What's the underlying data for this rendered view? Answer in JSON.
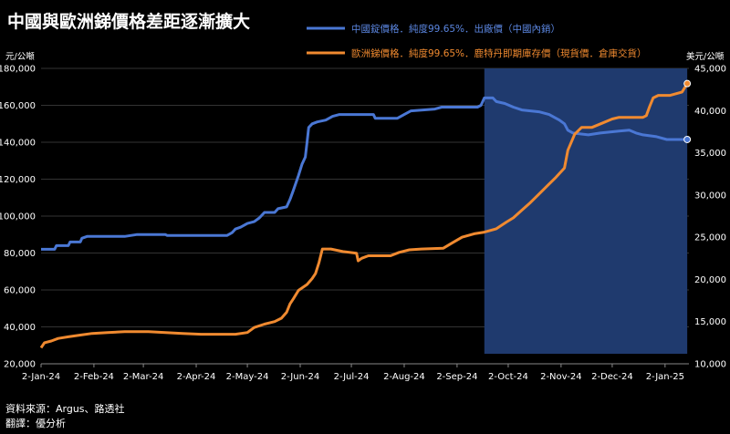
{
  "chart_data": {
    "type": "line",
    "title": "中國與歐洲銻價格差距逐漸擴大",
    "y_left_unit": "元/公噸",
    "y_right_unit": "美元/公噸",
    "y_left_range": [
      20000,
      180000
    ],
    "y_right_range": [
      10000,
      45000
    ],
    "y_left_ticks": [
      "20,000",
      "40,000",
      "60,000",
      "80,000",
      "100,000",
      "120,000",
      "140,000",
      "160,000",
      "180,000"
    ],
    "y_right_ticks": [
      "10,000",
      "15,000",
      "20,000",
      "25,000",
      "30,000",
      "35,000",
      "40,000",
      "45,000"
    ],
    "x_ticks": [
      "2-Jan-24",
      "2-Feb-24",
      "2-Mar-24",
      "2-Apr-24",
      "2-May-24",
      "2-Jun-24",
      "2-Jul-24",
      "2-Aug-24",
      "2-Sep-24",
      "2-Oct-24",
      "2-Nov-24",
      "2-Dec-24",
      "2-Jan-25"
    ],
    "x_range": [
      "2024-01-02",
      "2025-01-16"
    ],
    "highlight_region": {
      "start": "2024-09-18",
      "end": "2025-01-15",
      "color": "#1f3a6e"
    },
    "grid": "horizontal",
    "legend_position": "top-right",
    "series": [
      {
        "name": "中國錠價格．純度99.65%．出廠價（中國內銷）",
        "axis": "left",
        "color": "#4a77d4",
        "points": [
          [
            "2024-01-02",
            82000
          ],
          [
            "2024-01-10",
            82000
          ],
          [
            "2024-01-11",
            84000
          ],
          [
            "2024-01-18",
            84000
          ],
          [
            "2024-01-19",
            86000
          ],
          [
            "2024-01-25",
            86000
          ],
          [
            "2024-01-26",
            88000
          ],
          [
            "2024-01-29",
            89000
          ],
          [
            "2024-02-20",
            89000
          ],
          [
            "2024-02-27",
            90000
          ],
          [
            "2024-03-15",
            90000
          ],
          [
            "2024-03-16",
            89500
          ],
          [
            "2024-04-20",
            89500
          ],
          [
            "2024-04-23",
            91000
          ],
          [
            "2024-04-25",
            93000
          ],
          [
            "2024-04-28",
            94000
          ],
          [
            "2024-05-02",
            96000
          ],
          [
            "2024-05-06",
            97000
          ],
          [
            "2024-05-09",
            99000
          ],
          [
            "2024-05-12",
            102000
          ],
          [
            "2024-05-18",
            102000
          ],
          [
            "2024-05-20",
            104000
          ],
          [
            "2024-05-25",
            105000
          ],
          [
            "2024-05-27",
            109000
          ],
          [
            "2024-05-29",
            114000
          ],
          [
            "2024-06-01",
            122000
          ],
          [
            "2024-06-03",
            128000
          ],
          [
            "2024-06-05",
            132000
          ],
          [
            "2024-06-06",
            140000
          ],
          [
            "2024-06-07",
            148000
          ],
          [
            "2024-06-09",
            150000
          ],
          [
            "2024-06-12",
            151000
          ],
          [
            "2024-06-17",
            152000
          ],
          [
            "2024-06-21",
            154000
          ],
          [
            "2024-06-25",
            155000
          ],
          [
            "2024-07-15",
            155000
          ],
          [
            "2024-07-16",
            153000
          ],
          [
            "2024-07-29",
            153000
          ],
          [
            "2024-08-02",
            155000
          ],
          [
            "2024-08-06",
            157000
          ],
          [
            "2024-08-20",
            158000
          ],
          [
            "2024-08-24",
            159000
          ],
          [
            "2024-09-14",
            159000
          ],
          [
            "2024-09-16",
            160000
          ],
          [
            "2024-09-18",
            164000
          ],
          [
            "2024-09-23",
            164000
          ],
          [
            "2024-09-25",
            162000
          ],
          [
            "2024-09-30",
            161000
          ],
          [
            "2024-10-05",
            159000
          ],
          [
            "2024-10-10",
            157500
          ],
          [
            "2024-10-20",
            156500
          ],
          [
            "2024-10-26",
            155000
          ],
          [
            "2024-11-01",
            152000
          ],
          [
            "2024-11-04",
            150000
          ],
          [
            "2024-11-06",
            146500
          ],
          [
            "2024-11-09",
            145000
          ],
          [
            "2024-11-18",
            144000
          ],
          [
            "2024-11-25",
            145000
          ],
          [
            "2024-12-06",
            146000
          ],
          [
            "2024-12-12",
            146500
          ],
          [
            "2024-12-16",
            145000
          ],
          [
            "2024-12-20",
            144000
          ],
          [
            "2024-12-28",
            143000
          ],
          [
            "2025-01-03",
            141500
          ],
          [
            "2025-01-15",
            141500
          ]
        ]
      },
      {
        "name": "歐洲銻價格．純度99.65%．鹿特丹即期庫存價（現貨價．倉庫交貨）",
        "axis": "right",
        "color": "#f08a30",
        "points": [
          [
            "2024-01-02",
            11900
          ],
          [
            "2024-01-04",
            12500
          ],
          [
            "2024-01-08",
            12700
          ],
          [
            "2024-01-12",
            13000
          ],
          [
            "2024-01-18",
            13200
          ],
          [
            "2024-01-25",
            13400
          ],
          [
            "2024-02-01",
            13600
          ],
          [
            "2024-02-10",
            13700
          ],
          [
            "2024-02-20",
            13800
          ],
          [
            "2024-03-05",
            13800
          ],
          [
            "2024-03-15",
            13700
          ],
          [
            "2024-03-25",
            13600
          ],
          [
            "2024-04-05",
            13500
          ],
          [
            "2024-04-15",
            13500
          ],
          [
            "2024-04-25",
            13500
          ],
          [
            "2024-05-02",
            13700
          ],
          [
            "2024-05-06",
            14300
          ],
          [
            "2024-05-12",
            14700
          ],
          [
            "2024-05-18",
            15000
          ],
          [
            "2024-05-22",
            15400
          ],
          [
            "2024-05-25",
            16100
          ],
          [
            "2024-05-27",
            17100
          ],
          [
            "2024-05-29",
            17700
          ],
          [
            "2024-06-01",
            18700
          ],
          [
            "2024-06-06",
            19400
          ],
          [
            "2024-06-09",
            20100
          ],
          [
            "2024-06-11",
            20700
          ],
          [
            "2024-06-13",
            22000
          ],
          [
            "2024-06-15",
            23600
          ],
          [
            "2024-06-20",
            23600
          ],
          [
            "2024-06-27",
            23300
          ],
          [
            "2024-07-05",
            23100
          ],
          [
            "2024-07-06",
            22200
          ],
          [
            "2024-07-08",
            22500
          ],
          [
            "2024-07-12",
            22800
          ],
          [
            "2024-07-25",
            22800
          ],
          [
            "2024-07-30",
            23200
          ],
          [
            "2024-08-05",
            23500
          ],
          [
            "2024-08-12",
            23600
          ],
          [
            "2024-08-25",
            23700
          ],
          [
            "2024-08-30",
            24300
          ],
          [
            "2024-09-05",
            25000
          ],
          [
            "2024-09-12",
            25400
          ],
          [
            "2024-09-18",
            25600
          ],
          [
            "2024-09-25",
            26000
          ],
          [
            "2024-10-01",
            26800
          ],
          [
            "2024-10-05",
            27300
          ],
          [
            "2024-10-10",
            28200
          ],
          [
            "2024-10-15",
            29100
          ],
          [
            "2024-10-20",
            30100
          ],
          [
            "2024-10-25",
            31100
          ],
          [
            "2024-10-30",
            32100
          ],
          [
            "2024-11-04",
            33200
          ],
          [
            "2024-11-06",
            35300
          ],
          [
            "2024-11-10",
            37200
          ],
          [
            "2024-11-14",
            38000
          ],
          [
            "2024-11-20",
            38000
          ],
          [
            "2024-11-26",
            38500
          ],
          [
            "2024-12-02",
            39000
          ],
          [
            "2024-12-06",
            39200
          ],
          [
            "2024-12-20",
            39200
          ],
          [
            "2024-12-22",
            39400
          ],
          [
            "2024-12-24",
            40500
          ],
          [
            "2024-12-26",
            41500
          ],
          [
            "2024-12-29",
            41800
          ],
          [
            "2025-01-05",
            41800
          ],
          [
            "2025-01-12",
            42200
          ],
          [
            "2025-01-15",
            43200
          ]
        ]
      }
    ]
  },
  "source": {
    "line1": "資料來源：Argus、路透社",
    "line2": "翻譯：優分析"
  }
}
